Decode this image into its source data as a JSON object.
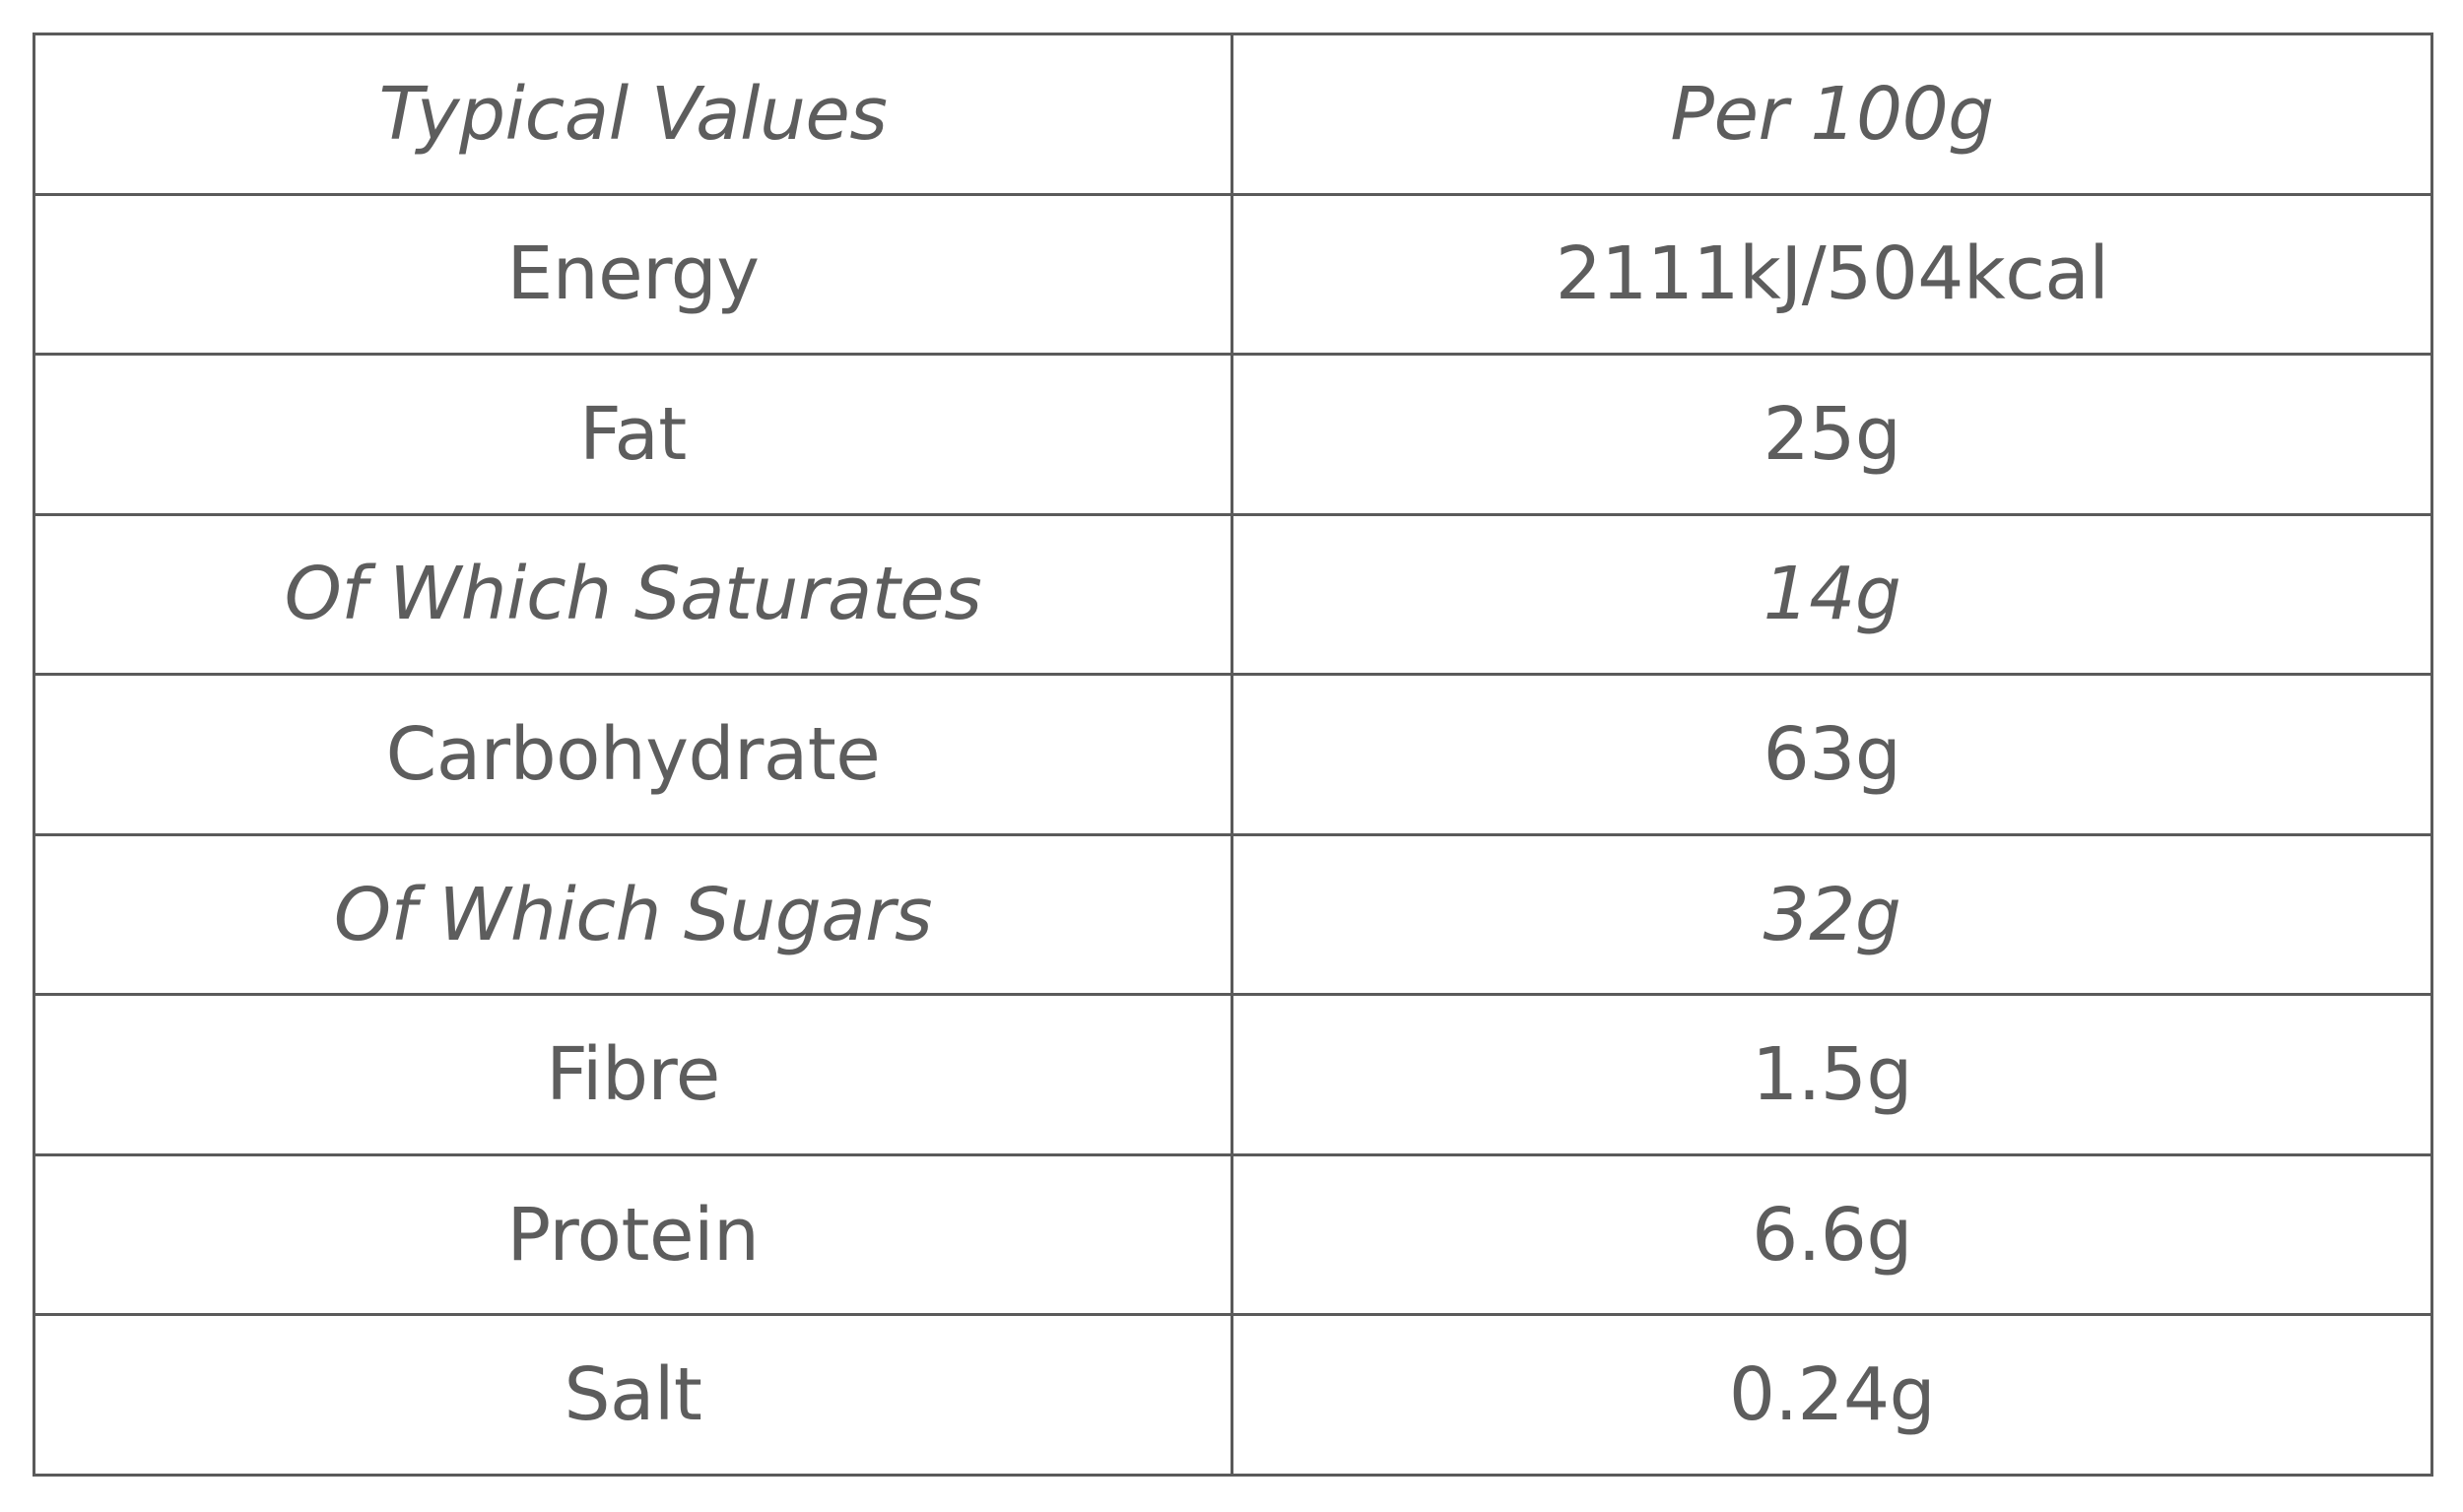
{
  "table": {
    "header": {
      "label": "Typical Values",
      "value": "Per 100g"
    },
    "rows": [
      {
        "label": "Energy",
        "value": "2111kJ/504kcal",
        "italic": false
      },
      {
        "label": "Fat",
        "value": "25g",
        "italic": false
      },
      {
        "label": "Of Which Saturates",
        "value": "14g",
        "italic": true
      },
      {
        "label": "Carbohydrate",
        "value": "63g",
        "italic": false
      },
      {
        "label": "Of Which Sugars",
        "value": "32g",
        "italic": true
      },
      {
        "label": "Fibre",
        "value": "1.5g",
        "italic": false
      },
      {
        "label": "Protein",
        "value": "6.6g",
        "italic": false
      },
      {
        "label": "Salt",
        "value": "0.24g",
        "italic": false
      }
    ]
  }
}
